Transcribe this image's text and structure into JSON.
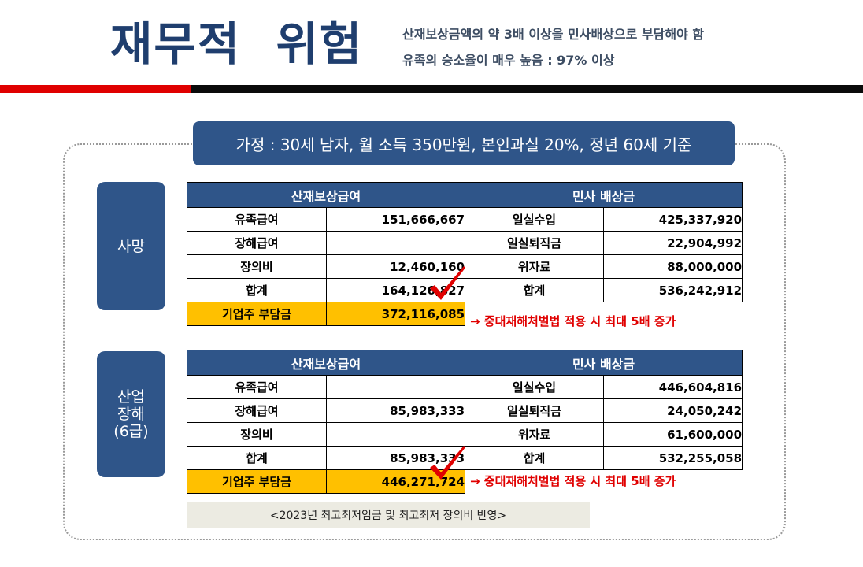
{
  "header": {
    "title": "재무적  위험",
    "subtitle_1": "산재보상금액의 약 3배 이상을 민사배상으로 부담해야 함",
    "subtitle_2": "유족의 승소율이 매우 높음 : 97% 이상"
  },
  "assumption": "가정 : 30세 남자, 월 소득 350만원, 본인과실 20%, 정년 60세 기준",
  "colors": {
    "navy": "#2f5589",
    "title": "#1f3e6e",
    "red": "#e00000",
    "yellow": "#ffc000"
  },
  "cases": [
    {
      "label": "사망",
      "col_header_left": "산재보상급여",
      "col_header_right": "민사 배상금",
      "rows": [
        {
          "left_label": "유족급여",
          "left_value": "151,666,667",
          "right_label": "일실수입",
          "right_value": "425,337,920"
        },
        {
          "left_label": "장해급여",
          "left_value": "",
          "right_label": "일실퇴직금",
          "right_value": "22,904,992"
        },
        {
          "left_label": "장의비",
          "left_value": "12,460,160",
          "right_label": "위자료",
          "right_value": "88,000,000"
        },
        {
          "left_label": "합계",
          "left_value": "164,126,827",
          "right_label": "합계",
          "right_value": "536,242,912"
        }
      ],
      "burden_label": "기업주 부담금",
      "burden_value": "372,116,085",
      "note": "→ 중대재해처벌법 적용 시 최대 5배 증가"
    },
    {
      "label": "산업\n장해\n(6급)",
      "col_header_left": "산재보상급여",
      "col_header_right": "민사 배상금",
      "rows": [
        {
          "left_label": "유족급여",
          "left_value": "",
          "right_label": "일실수입",
          "right_value": "446,604,816"
        },
        {
          "left_label": "장해급여",
          "left_value": "85,983,333",
          "right_label": "일실퇴직금",
          "right_value": "24,050,242"
        },
        {
          "left_label": "장의비",
          "left_value": "",
          "right_label": "위자료",
          "right_value": "61,600,000"
        },
        {
          "left_label": "합계",
          "left_value": "85,983,333",
          "right_label": "합계",
          "right_value": "532,255,058"
        }
      ],
      "burden_label": "기업주 부담금",
      "burden_value": "446,271,724",
      "note": "→ 중대재해처벌법 적용 시 최대 5배 증가"
    }
  ],
  "footer_note": "<2023년  최고최저임금 및 최고최저 장의비 반영>"
}
